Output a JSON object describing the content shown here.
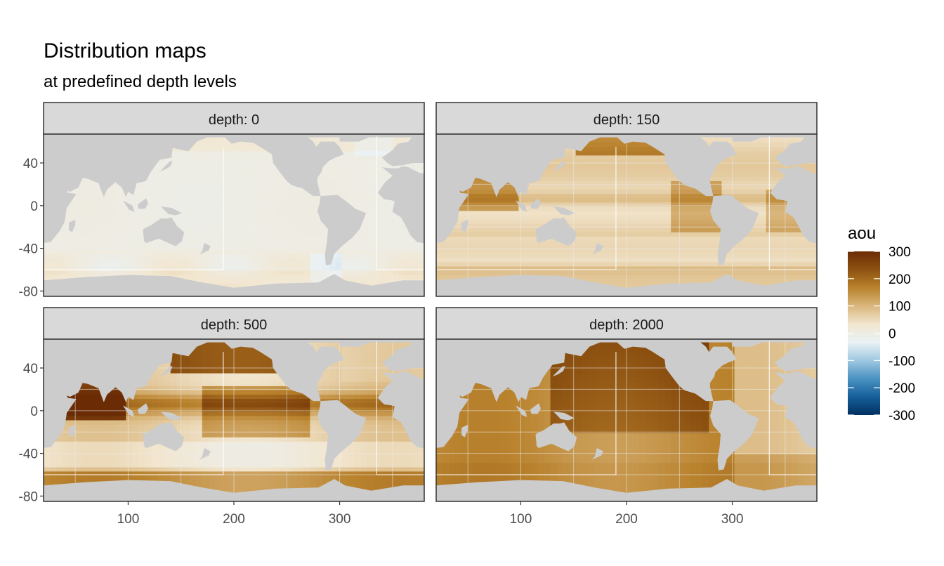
{
  "chart_data": {
    "type": "heatmap",
    "title": "Distribution maps",
    "subtitle": "at predefined depth levels",
    "facet_label_prefix": "depth: ",
    "x_range": [
      20,
      380
    ],
    "y_range": [
      -85,
      67
    ],
    "x_ticks": [
      100,
      200,
      300
    ],
    "y_ticks": [
      40,
      0,
      -40,
      -80
    ],
    "panels": [
      {
        "depth": "0",
        "label": "depth: 0"
      },
      {
        "depth": "150",
        "label": "depth: 150"
      },
      {
        "depth": "500",
        "label": "depth: 500"
      },
      {
        "depth": "2000",
        "label": "depth: 2000"
      }
    ],
    "sections": [
      {
        "x": 190,
        "y_from": -60,
        "y_to": 55
      },
      {
        "x": 335,
        "y_from": -60,
        "y_to": 65
      },
      {
        "y": -60,
        "x_from": 20,
        "x_to": 190
      },
      {
        "y": -60,
        "x_from": 335,
        "x_to": 380
      }
    ],
    "legend": {
      "title": "aou",
      "breaks": [
        300,
        200,
        100,
        0,
        -100,
        -200,
        -300
      ],
      "limits": [
        -300,
        300
      ],
      "colors": [
        "#00305f",
        "#165f9a",
        "#4a92c2",
        "#9ec8e0",
        "#eaf2f6",
        "#f2e6cf",
        "#d9b67c",
        "#b9822d",
        "#8d5211",
        "#6b2c05"
      ],
      "position": "right"
    },
    "colors": {
      "land": "#cccccc",
      "strip": "#d9d9d9",
      "panel_border": "#333333"
    }
  }
}
